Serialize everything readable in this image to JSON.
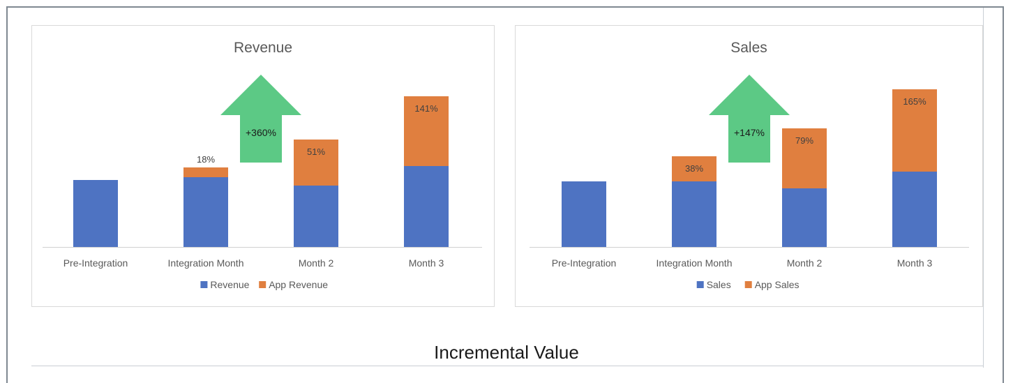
{
  "caption": "Incremental Value",
  "colors": {
    "base": "#4e73c2",
    "app": "#e07f3f",
    "arrow": "#5cc985",
    "axis": "#d0d0d0"
  },
  "chart_data": [
    {
      "type": "bar",
      "stacked": true,
      "title": "Revenue",
      "categories": [
        "Pre-Integration",
        "Integration Month",
        "Month 2",
        "Month 3"
      ],
      "series": [
        {
          "name": "Revenue",
          "values": [
            48,
            50,
            44,
            58
          ]
        },
        {
          "name": "App Revenue",
          "values": [
            0,
            7,
            33,
            50
          ]
        }
      ],
      "data_labels": [
        "",
        "18%",
        "51%",
        "141%"
      ],
      "annotation": {
        "text": "+360%",
        "category_index": 1.5
      },
      "ylim": [
        0,
        120
      ],
      "legend": "bottom",
      "grid": false
    },
    {
      "type": "bar",
      "stacked": true,
      "title": "Sales",
      "categories": [
        "Pre-Integration",
        "Integration Month",
        "Month 2",
        "Month 3"
      ],
      "series": [
        {
          "name": "Sales",
          "values": [
            47,
            47,
            42,
            54
          ]
        },
        {
          "name": "App Sales",
          "values": [
            0,
            18,
            43,
            59
          ]
        }
      ],
      "data_labels": [
        "",
        "38%",
        "79%",
        "165%"
      ],
      "annotation": {
        "text": "+147%",
        "category_index": 1.5
      },
      "ylim": [
        0,
        120
      ],
      "legend": "bottom",
      "grid": false
    }
  ]
}
